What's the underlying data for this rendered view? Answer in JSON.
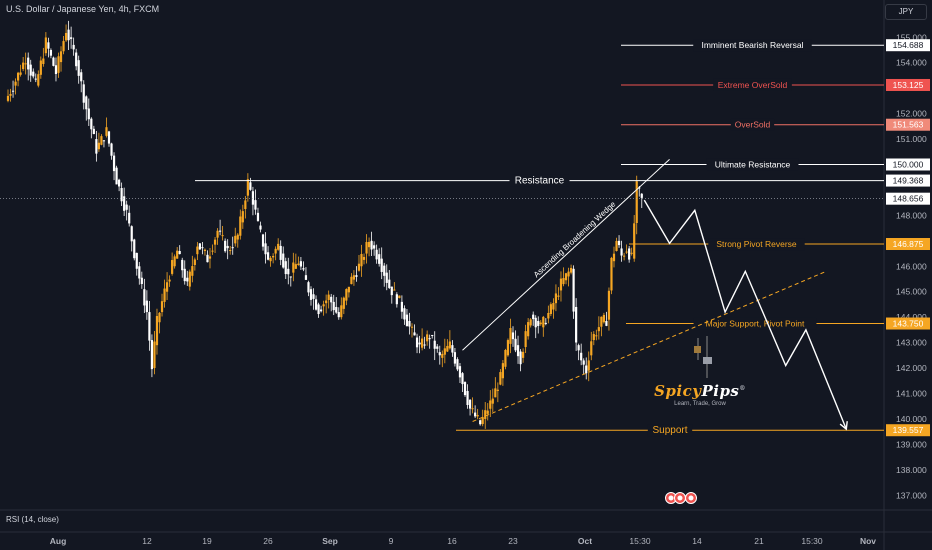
{
  "header": {
    "symbol_title": "U.S. Dollar / Japanese Yen, 4h, FXCM",
    "currency": "JPY"
  },
  "indicator": {
    "label": "RSI (14, close)"
  },
  "brand": {
    "name_a": "Spicy",
    "name_b": "Pips",
    "tagline": "Learn, Trade, Grow",
    "reg": "®"
  },
  "colors": {
    "bg": "#131722",
    "up": "#f5a623",
    "down": "#ffffff",
    "white_level": "#ffffff",
    "red_level": "#ef5350",
    "orange_level": "#f5a623",
    "grid_text": "#b2b5be"
  },
  "chart_data": {
    "type": "candlestick",
    "ylim": [
      136.5,
      155.6
    ],
    "y_ticks": [
      {
        "v": 155.0,
        "t": "155.000"
      },
      {
        "v": 154.0,
        "t": "154.000"
      },
      {
        "v": 152.0,
        "t": "152.000"
      },
      {
        "v": 151.0,
        "t": "151.000"
      },
      {
        "v": 148.0,
        "t": "148.000"
      },
      {
        "v": 146.0,
        "t": "146.000"
      },
      {
        "v": 145.0,
        "t": "145.000"
      },
      {
        "v": 144.0,
        "t": "144.000"
      },
      {
        "v": 143.0,
        "t": "143.000"
      },
      {
        "v": 142.0,
        "t": "142.000"
      },
      {
        "v": 141.0,
        "t": "141.000"
      },
      {
        "v": 140.0,
        "t": "140.000"
      },
      {
        "v": 139.0,
        "t": "139.000"
      },
      {
        "v": 138.0,
        "t": "138.000"
      },
      {
        "v": 137.0,
        "t": "137.000"
      }
    ],
    "x_ticks": [
      "Aug",
      "12",
      "19",
      "26",
      "Sep",
      "9",
      "16",
      "23",
      "Oct",
      "15:30",
      "14",
      "21",
      "15:30",
      "Nov"
    ],
    "current_price": {
      "value": 148.656,
      "label": "148.656"
    },
    "levels": [
      {
        "name": "Imminent Bearish Reversal",
        "value": 154.688,
        "label": "154.688",
        "kind": "white"
      },
      {
        "name": "Extreme OverSold",
        "value": 153.125,
        "label": "153.125",
        "kind": "red"
      },
      {
        "name": "OverSold",
        "value": 151.563,
        "label": "151.563",
        "kind": "red_light"
      },
      {
        "name": "Ultimate Resistance",
        "value": 150.0,
        "label": "150.000",
        "kind": "white"
      },
      {
        "name": "Resistance",
        "value": 149.368,
        "label": "149.368",
        "kind": "white"
      },
      {
        "name": "Strong Pivot Reverse",
        "value": 146.875,
        "label": "146.875",
        "kind": "orange"
      },
      {
        "name": "Major Support, Pivot Point",
        "value": 143.75,
        "label": "143.750",
        "kind": "orange"
      },
      {
        "name": "Support",
        "value": 139.557,
        "label": "139.557",
        "kind": "orange"
      }
    ],
    "annotations": [
      {
        "text": "Ascending Broadening Wedge"
      }
    ],
    "price_path": [
      [
        0,
        152.5
      ],
      [
        2,
        153.3
      ],
      [
        4,
        154.2
      ],
      [
        6,
        153.1
      ],
      [
        8,
        154.8
      ],
      [
        10,
        153.6
      ],
      [
        12,
        155.3
      ],
      [
        14,
        154.1
      ],
      [
        16,
        152.2
      ],
      [
        18,
        150.6
      ],
      [
        20,
        151.3
      ],
      [
        22,
        149.4
      ],
      [
        24,
        148.1
      ],
      [
        26,
        146.0
      ],
      [
        28,
        144.2
      ],
      [
        29,
        142.0
      ],
      [
        30,
        143.8
      ],
      [
        32,
        145.4
      ],
      [
        34,
        146.6
      ],
      [
        36,
        145.2
      ],
      [
        38,
        146.9
      ],
      [
        40,
        146.3
      ],
      [
        42,
        147.4
      ],
      [
        44,
        146.6
      ],
      [
        46,
        147.2
      ],
      [
        48,
        149.3
      ],
      [
        49,
        148.6
      ],
      [
        50,
        147.6
      ],
      [
        52,
        146.2
      ],
      [
        54,
        146.8
      ],
      [
        56,
        145.6
      ],
      [
        58,
        146.2
      ],
      [
        60,
        145.1
      ],
      [
        62,
        144.3
      ],
      [
        64,
        144.8
      ],
      [
        66,
        144.0
      ],
      [
        68,
        145.3
      ],
      [
        70,
        146.0
      ],
      [
        72,
        147.0
      ],
      [
        74,
        146.3
      ],
      [
        76,
        145.2
      ],
      [
        78,
        144.6
      ],
      [
        80,
        143.6
      ],
      [
        82,
        142.8
      ],
      [
        84,
        143.3
      ],
      [
        86,
        142.4
      ],
      [
        88,
        142.9
      ],
      [
        90,
        141.8
      ],
      [
        92,
        140.4
      ],
      [
        94,
        139.8
      ],
      [
        96,
        140.6
      ],
      [
        98,
        141.6
      ],
      [
        100,
        143.4
      ],
      [
        102,
        142.4
      ],
      [
        104,
        144.1
      ],
      [
        106,
        143.6
      ],
      [
        108,
        144.3
      ],
      [
        110,
        145.3
      ],
      [
        112,
        145.9
      ],
      [
        113,
        142.9
      ],
      [
        114,
        142.3
      ],
      [
        115,
        141.9
      ],
      [
        116,
        143.1
      ],
      [
        118,
        143.8
      ],
      [
        119,
        143.9
      ],
      [
        120,
        146.2
      ],
      [
        121,
        147.0
      ],
      [
        122,
        146.4
      ],
      [
        123,
        146.7
      ],
      [
        124,
        146.3
      ],
      [
        125,
        149.1
      ],
      [
        126,
        148.6
      ]
    ],
    "forecast_path": [
      [
        126,
        148.6
      ],
      [
        131,
        146.9
      ],
      [
        136,
        148.2
      ],
      [
        142,
        144.2
      ],
      [
        146,
        145.8
      ],
      [
        154,
        142.1
      ],
      [
        158,
        143.5
      ],
      [
        166,
        139.6
      ]
    ],
    "wedge_upper": [
      [
        90,
        142.7
      ],
      [
        131,
        150.2
      ]
    ],
    "wedge_lower": [
      [
        92,
        139.9
      ],
      [
        162,
        145.8
      ]
    ]
  }
}
